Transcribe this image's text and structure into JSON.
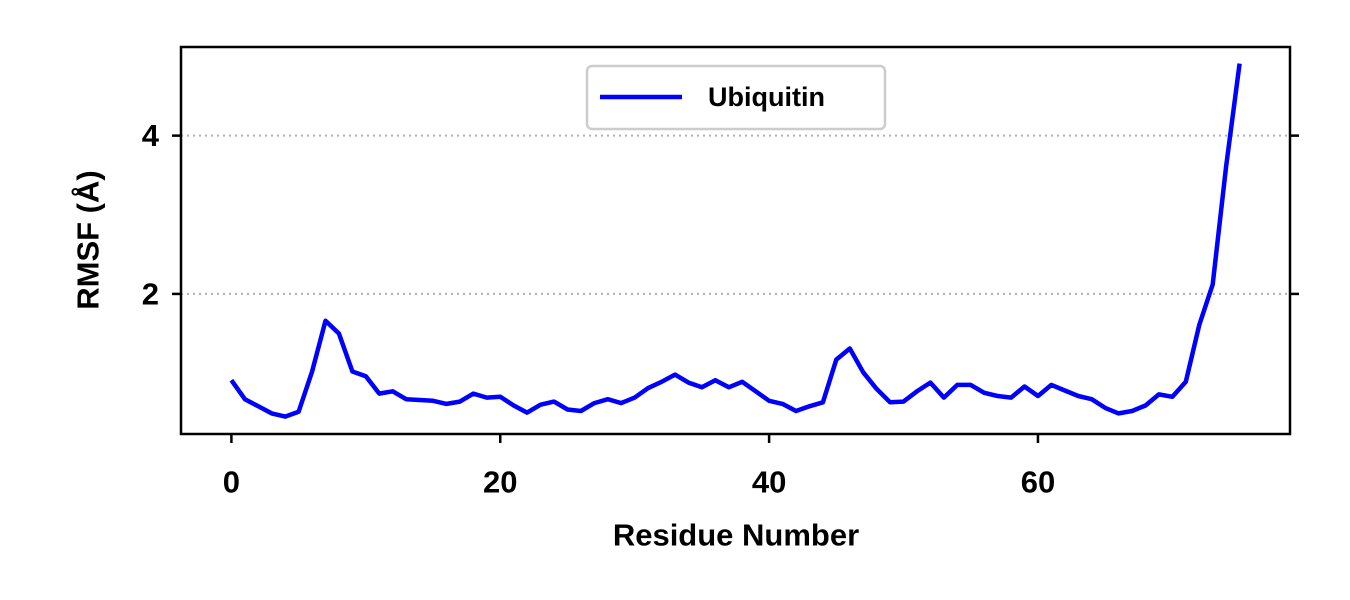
{
  "chart_data": {
    "type": "line",
    "xlabel": "Residue Number",
    "ylabel": "RMSF (Å)",
    "xlim": [
      -3.75,
      78.75
    ],
    "ylim": [
      0.23,
      5.12
    ],
    "xticks": [
      0,
      20,
      40,
      60
    ],
    "yticks": [
      2,
      4
    ],
    "grid": {
      "axis": "y",
      "style": "dotted",
      "color": "#b0b0b0"
    },
    "legend": {
      "position": "top-center"
    },
    "series": [
      {
        "name": "Ubiquitin",
        "color": "#0000ff",
        "x": [
          0,
          1,
          2,
          3,
          4,
          5,
          6,
          7,
          8,
          9,
          10,
          11,
          12,
          13,
          14,
          15,
          16,
          17,
          18,
          19,
          20,
          21,
          22,
          23,
          24,
          25,
          26,
          27,
          28,
          29,
          30,
          31,
          32,
          33,
          34,
          35,
          36,
          37,
          38,
          39,
          40,
          41,
          42,
          43,
          44,
          45,
          46,
          47,
          48,
          49,
          50,
          51,
          52,
          53,
          54,
          55,
          56,
          57,
          58,
          59,
          60,
          61,
          62,
          63,
          64,
          65,
          66,
          67,
          68,
          69,
          70,
          71,
          72,
          73,
          74,
          75
        ],
        "y": [
          0.91,
          0.67,
          0.58,
          0.49,
          0.45,
          0.51,
          1.02,
          1.66,
          1.5,
          1.02,
          0.96,
          0.74,
          0.77,
          0.67,
          0.66,
          0.65,
          0.61,
          0.64,
          0.74,
          0.69,
          0.7,
          0.59,
          0.5,
          0.6,
          0.64,
          0.54,
          0.52,
          0.62,
          0.67,
          0.62,
          0.69,
          0.81,
          0.89,
          0.98,
          0.88,
          0.82,
          0.91,
          0.82,
          0.89,
          0.77,
          0.65,
          0.61,
          0.52,
          0.58,
          0.63,
          1.17,
          1.31,
          1.01,
          0.8,
          0.63,
          0.64,
          0.77,
          0.88,
          0.69,
          0.85,
          0.85,
          0.75,
          0.71,
          0.69,
          0.83,
          0.71,
          0.85,
          0.78,
          0.71,
          0.67,
          0.56,
          0.49,
          0.52,
          0.59,
          0.73,
          0.7,
          0.89,
          1.61,
          2.12,
          3.61,
          4.91
        ]
      }
    ]
  }
}
